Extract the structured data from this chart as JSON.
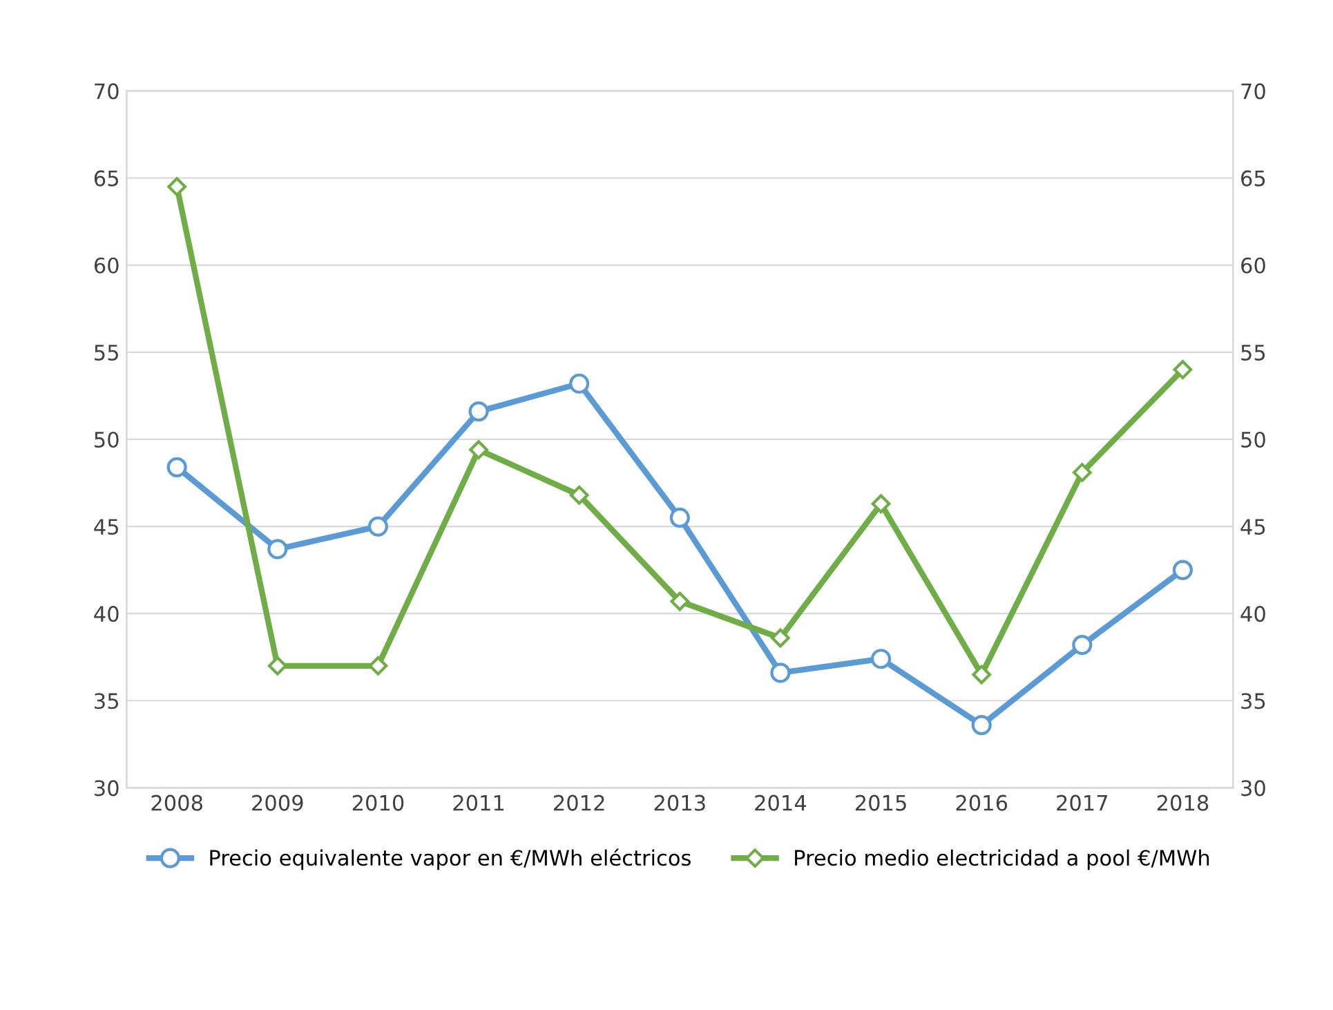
{
  "chart_data": {
    "type": "line",
    "categories": [
      "2008",
      "2009",
      "2010",
      "2011",
      "2012",
      "2013",
      "2014",
      "2015",
      "2016",
      "2017",
      "2018"
    ],
    "series": [
      {
        "name": "Precio equivalente vapor en €/MWh eléctricos",
        "color": "#5b9bd5",
        "marker": "circle",
        "values": [
          48.4,
          43.7,
          45.0,
          51.6,
          53.2,
          45.5,
          36.6,
          37.4,
          33.6,
          38.2,
          42.5
        ]
      },
      {
        "name": "Precio medio electricidad a pool €/MWh",
        "color": "#70ad47",
        "marker": "diamond",
        "values": [
          64.5,
          37.0,
          37.0,
          49.4,
          46.8,
          40.7,
          38.6,
          46.3,
          36.5,
          48.1,
          54.0
        ]
      }
    ],
    "ylim": [
      30,
      70
    ],
    "yticks": [
      30,
      35,
      40,
      45,
      50,
      55,
      60,
      65,
      70
    ],
    "y2lim": [
      30,
      70
    ],
    "y2ticks": [
      30,
      35,
      40,
      45,
      50,
      55,
      60,
      65,
      70
    ],
    "grid": true,
    "legend": "bottom",
    "line_style": "solid"
  }
}
